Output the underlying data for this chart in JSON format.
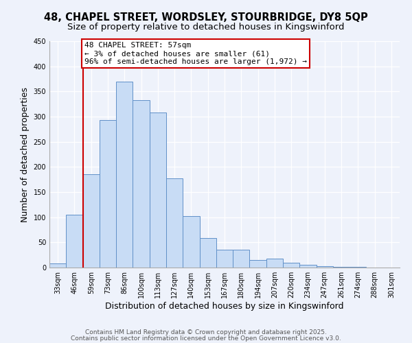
{
  "title": "48, CHAPEL STREET, WORDSLEY, STOURBRIDGE, DY8 5QP",
  "subtitle": "Size of property relative to detached houses in Kingswinford",
  "xlabel": "Distribution of detached houses by size in Kingswinford",
  "ylabel": "Number of detached properties",
  "bar_color": "#c8dcf5",
  "bar_edge_color": "#6090c8",
  "background_color": "#eef2fb",
  "grid_color": "#ffffff",
  "categories": [
    "33sqm",
    "46sqm",
    "59sqm",
    "73sqm",
    "86sqm",
    "100sqm",
    "113sqm",
    "127sqm",
    "140sqm",
    "153sqm",
    "167sqm",
    "180sqm",
    "194sqm",
    "207sqm",
    "220sqm",
    "234sqm",
    "247sqm",
    "261sqm",
    "274sqm",
    "288sqm",
    "301sqm"
  ],
  "values": [
    8,
    105,
    185,
    293,
    370,
    333,
    308,
    177,
    102,
    58,
    35,
    35,
    15,
    18,
    10,
    5,
    3,
    2,
    1,
    0,
    0
  ],
  "ylim": [
    0,
    450
  ],
  "yticks": [
    0,
    50,
    100,
    150,
    200,
    250,
    300,
    350,
    400,
    450
  ],
  "vline_color": "#cc0000",
  "vline_x": 1.5,
  "annotation_text": "48 CHAPEL STREET: 57sqm\n← 3% of detached houses are smaller (61)\n96% of semi-detached houses are larger (1,972) →",
  "annotation_box_edge": "#cc0000",
  "footer_line1": "Contains HM Land Registry data © Crown copyright and database right 2025.",
  "footer_line2": "Contains public sector information licensed under the Open Government Licence v3.0.",
  "title_fontsize": 10.5,
  "subtitle_fontsize": 9.5,
  "tick_fontsize": 7,
  "label_fontsize": 9,
  "footer_fontsize": 6.5,
  "annotation_fontsize": 8
}
